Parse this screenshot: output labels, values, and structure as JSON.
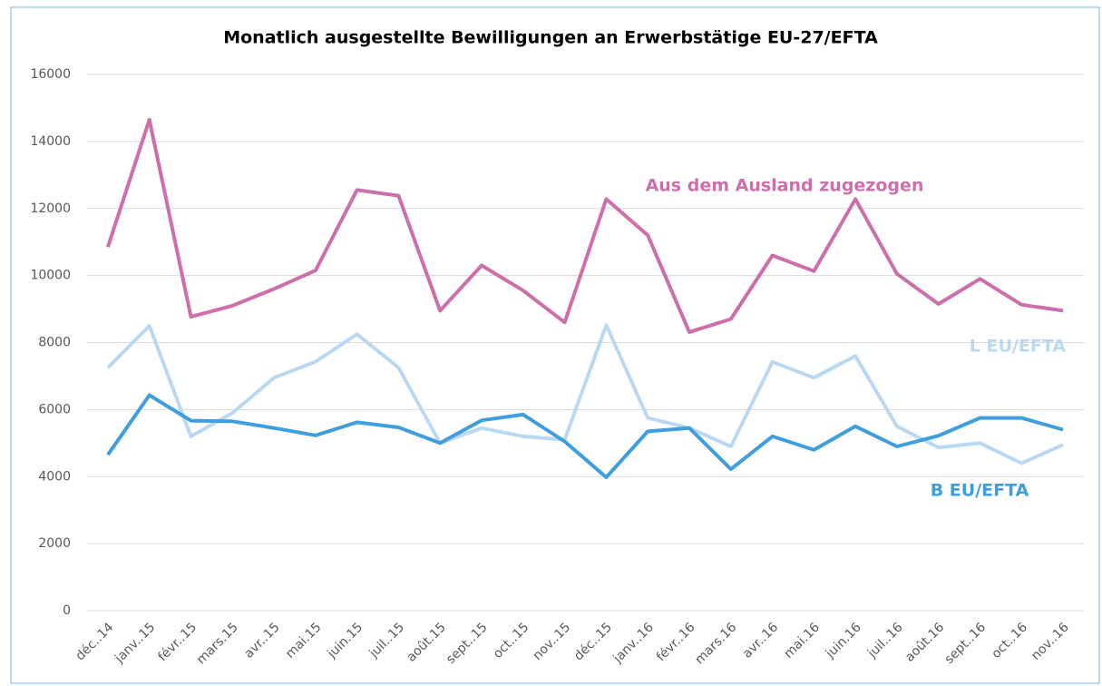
{
  "chart_data": {
    "type": "line",
    "title": "Monatlich ausgestellte Bewilligungen an Erwerbstätige EU-27/EFTA",
    "categories": [
      "déc..14",
      "janv..15",
      "févr..15",
      "mars.15",
      "avr..15",
      "mai.15",
      "juin.15",
      "juil..15",
      "août.15",
      "sept..15",
      "oct..15",
      "nov..15",
      "déc..15",
      "janv..16",
      "févr..16",
      "mars.16",
      "avr..16",
      "mai.16",
      "juin.16",
      "juil..16",
      "août.16",
      "sept..16",
      "oct..16",
      "nov..16"
    ],
    "series": [
      {
        "name": "Aus dem Ausland zugezogen",
        "color": "#cc6fab",
        "values": [
          10850,
          14650,
          8770,
          9100,
          9600,
          10150,
          12550,
          12380,
          8950,
          10300,
          9550,
          8600,
          12280,
          11200,
          8310,
          8700,
          10600,
          10130,
          12280,
          10050,
          9150,
          9900,
          9130,
          8950
        ]
      },
      {
        "name": "L EU/EFTA",
        "color": "#bad8f2",
        "values": [
          7250,
          8500,
          5200,
          5900,
          6950,
          7430,
          8250,
          7250,
          5000,
          5450,
          5200,
          5100,
          8520,
          5750,
          5450,
          4900,
          7420,
          6950,
          7600,
          5500,
          4870,
          5000,
          4400,
          4950
        ]
      },
      {
        "name": "B EU/EFTA",
        "color": "#3f9fde",
        "values": [
          4650,
          6430,
          5670,
          5650,
          5450,
          5230,
          5620,
          5470,
          5000,
          5680,
          5850,
          5050,
          3980,
          5350,
          5450,
          4220,
          5200,
          4800,
          5500,
          4900,
          5220,
          5750,
          5750,
          5400
        ]
      }
    ],
    "ylim": [
      0,
      16000
    ],
    "yticks": [
      0,
      2000,
      4000,
      6000,
      8000,
      10000,
      12000,
      14000,
      16000
    ],
    "grid": true
  }
}
